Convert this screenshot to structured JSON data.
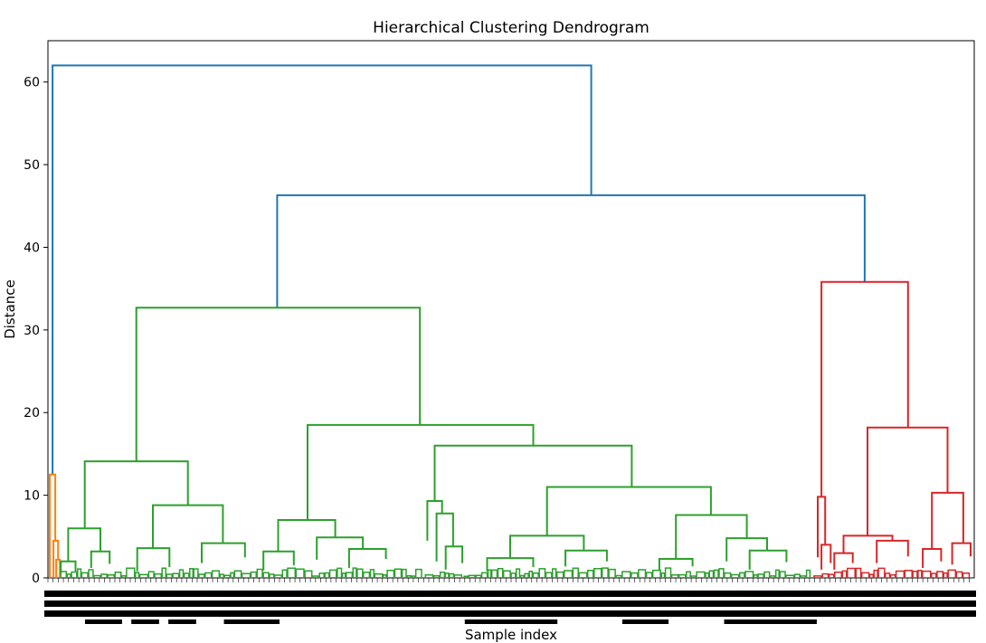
{
  "chart_data": {
    "type": "dendrogram",
    "title": "Hierarchical Clustering Dendrogram",
    "xlabel": "Sample index",
    "ylabel": "Distance",
    "ylim": [
      0,
      65
    ],
    "yticks": [
      0,
      10,
      20,
      30,
      40,
      50,
      60
    ],
    "xlim": [
      0,
      1
    ],
    "colors": {
      "above_threshold": "#1f77b4",
      "cluster_1": "#ff7f0e",
      "cluster_2": "#2ca02c",
      "cluster_3": "#d62728"
    },
    "links": [
      {
        "x": [
          0.003,
          0.003,
          0.588,
          0.588
        ],
        "y": [
          12.5,
          62,
          62,
          46.3
        ],
        "color": "#1f77b4"
      },
      {
        "x": [
          0.247,
          0.247,
          0.885,
          0.885
        ],
        "y": [
          32.7,
          46.3,
          46.3,
          35.8
        ],
        "color": "#1f77b4"
      },
      {
        "x": [
          0.0,
          0.0,
          0.006,
          0.006
        ],
        "y": [
          0.0,
          12.5,
          12.5,
          4.5
        ],
        "color": "#ff7f0e"
      },
      {
        "x": [
          0.004,
          0.004,
          0.009,
          0.009
        ],
        "y": [
          0.0,
          4.5,
          4.5,
          2.2
        ],
        "color": "#ff7f0e"
      },
      {
        "x": [
          0.007,
          0.007,
          0.011,
          0.011
        ],
        "y": [
          0.0,
          2.2,
          2.2,
          0.0
        ],
        "color": "#ff7f0e"
      },
      {
        "x": [
          0.094,
          0.094,
          0.402,
          0.402
        ],
        "y": [
          14.1,
          32.7,
          32.7,
          18.5
        ],
        "color": "#2ca02c"
      },
      {
        "x": [
          0.038,
          0.038,
          0.15,
          0.15
        ],
        "y": [
          6.0,
          14.1,
          14.1,
          8.8
        ],
        "color": "#2ca02c"
      },
      {
        "x": [
          0.02,
          0.02,
          0.055,
          0.055
        ],
        "y": [
          2.0,
          6.0,
          6.0,
          3.2
        ],
        "color": "#2ca02c"
      },
      {
        "x": [
          0.012,
          0.012,
          0.028,
          0.028
        ],
        "y": [
          0.5,
          2.0,
          2.0,
          0.8
        ],
        "color": "#2ca02c"
      },
      {
        "x": [
          0.045,
          0.045,
          0.065,
          0.065
        ],
        "y": [
          1.2,
          3.2,
          3.2,
          1.7
        ],
        "color": "#2ca02c"
      },
      {
        "x": [
          0.112,
          0.112,
          0.188,
          0.188
        ],
        "y": [
          3.6,
          8.8,
          8.8,
          4.2
        ],
        "color": "#2ca02c"
      },
      {
        "x": [
          0.095,
          0.095,
          0.13,
          0.13
        ],
        "y": [
          0.8,
          3.6,
          3.6,
          1.3
        ],
        "color": "#2ca02c"
      },
      {
        "x": [
          0.165,
          0.165,
          0.212,
          0.212
        ],
        "y": [
          1.8,
          4.2,
          4.2,
          2.5
        ],
        "color": "#2ca02c"
      },
      {
        "x": [
          0.28,
          0.28,
          0.525,
          0.525
        ],
        "y": [
          7.0,
          18.5,
          18.5,
          16.0
        ],
        "color": "#2ca02c"
      },
      {
        "x": [
          0.248,
          0.248,
          0.31,
          0.31
        ],
        "y": [
          3.2,
          7.0,
          7.0,
          4.9
        ],
        "color": "#2ca02c"
      },
      {
        "x": [
          0.232,
          0.232,
          0.265,
          0.265
        ],
        "y": [
          0.9,
          3.2,
          3.2,
          1.5
        ],
        "color": "#2ca02c"
      },
      {
        "x": [
          0.29,
          0.29,
          0.34,
          0.34
        ],
        "y": [
          2.2,
          4.9,
          4.9,
          3.5
        ],
        "color": "#2ca02c"
      },
      {
        "x": [
          0.325,
          0.325,
          0.365,
          0.365
        ],
        "y": [
          1.2,
          3.5,
          3.5,
          2.3
        ],
        "color": "#2ca02c"
      },
      {
        "x": [
          0.418,
          0.418,
          0.632,
          0.632
        ],
        "y": [
          9.3,
          16.0,
          16.0,
          11.0
        ],
        "color": "#2ca02c"
      },
      {
        "x": [
          0.41,
          0.41,
          0.426,
          0.426
        ],
        "y": [
          4.5,
          9.3,
          9.3,
          7.8
        ],
        "color": "#2ca02c"
      },
      {
        "x": [
          0.42,
          0.42,
          0.438,
          0.438
        ],
        "y": [
          2.0,
          7.8,
          7.8,
          3.8
        ],
        "color": "#2ca02c"
      },
      {
        "x": [
          0.43,
          0.43,
          0.448,
          0.448
        ],
        "y": [
          1.0,
          3.8,
          3.8,
          1.8
        ],
        "color": "#2ca02c"
      },
      {
        "x": [
          0.54,
          0.54,
          0.718,
          0.718
        ],
        "y": [
          5.1,
          11.0,
          11.0,
          7.6
        ],
        "color": "#2ca02c"
      },
      {
        "x": [
          0.5,
          0.5,
          0.58,
          0.58
        ],
        "y": [
          2.4,
          5.1,
          5.1,
          3.3
        ],
        "color": "#2ca02c"
      },
      {
        "x": [
          0.475,
          0.475,
          0.525,
          0.525
        ],
        "y": [
          0.8,
          2.4,
          2.4,
          1.3
        ],
        "color": "#2ca02c"
      },
      {
        "x": [
          0.56,
          0.56,
          0.605,
          0.605
        ],
        "y": [
          1.4,
          3.3,
          3.3,
          2.0
        ],
        "color": "#2ca02c"
      },
      {
        "x": [
          0.68,
          0.68,
          0.757,
          0.757
        ],
        "y": [
          2.3,
          7.6,
          7.6,
          4.8
        ],
        "color": "#2ca02c"
      },
      {
        "x": [
          0.662,
          0.662,
          0.698,
          0.698
        ],
        "y": [
          0.9,
          2.3,
          2.3,
          1.4
        ],
        "color": "#2ca02c"
      },
      {
        "x": [
          0.735,
          0.735,
          0.779,
          0.779
        ],
        "y": [
          2.0,
          4.8,
          4.8,
          3.3
        ],
        "color": "#2ca02c"
      },
      {
        "x": [
          0.76,
          0.76,
          0.8,
          0.8
        ],
        "y": [
          1.0,
          3.3,
          3.3,
          1.9
        ],
        "color": "#2ca02c"
      },
      {
        "x": [
          0.838,
          0.838,
          0.932,
          0.932
        ],
        "y": [
          9.8,
          35.8,
          35.8,
          18.2
        ],
        "color": "#d62728"
      },
      {
        "x": [
          0.834,
          0.834,
          0.842,
          0.842
        ],
        "y": [
          2.5,
          9.8,
          9.8,
          4.0
        ],
        "color": "#d62728"
      },
      {
        "x": [
          0.838,
          0.838,
          0.848,
          0.848
        ],
        "y": [
          1.0,
          4.0,
          4.0,
          1.8
        ],
        "color": "#d62728"
      },
      {
        "x": [
          0.888,
          0.888,
          0.975,
          0.975
        ],
        "y": [
          5.1,
          18.2,
          18.2,
          10.3
        ],
        "color": "#d62728"
      },
      {
        "x": [
          0.862,
          0.862,
          0.915,
          0.915
        ],
        "y": [
          3.0,
          5.1,
          5.1,
          4.5
        ],
        "color": "#d62728"
      },
      {
        "x": [
          0.852,
          0.852,
          0.872,
          0.872
        ],
        "y": [
          1.0,
          3.0,
          3.0,
          1.8
        ],
        "color": "#d62728"
      },
      {
        "x": [
          0.898,
          0.898,
          0.932,
          0.932
        ],
        "y": [
          1.8,
          4.5,
          4.5,
          2.6
        ],
        "color": "#d62728"
      },
      {
        "x": [
          0.958,
          0.958,
          0.992,
          0.992
        ],
        "y": [
          3.5,
          10.3,
          10.3,
          4.2
        ],
        "color": "#d62728"
      },
      {
        "x": [
          0.948,
          0.948,
          0.968,
          0.968
        ],
        "y": [
          1.2,
          3.5,
          3.5,
          2.0
        ],
        "color": "#d62728"
      },
      {
        "x": [
          0.98,
          0.98,
          1.0,
          1.0
        ],
        "y": [
          1.6,
          4.2,
          4.2,
          2.6
        ],
        "color": "#d62728"
      }
    ]
  }
}
